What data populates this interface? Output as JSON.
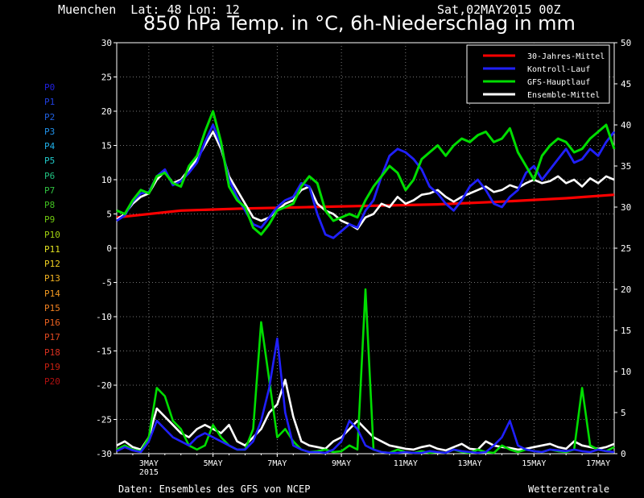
{
  "header": {
    "location": "Muenchen  Lat: 48 Lon: 12",
    "run": "Sat,02MAY2015 00Z",
    "title": "850 hPa Temp. in °C, 6h-Niederschlag in mm"
  },
  "footer": {
    "source": "Daten: Ensembles des GFS von NCEP",
    "brand": "Wetterzentrale"
  },
  "members": [
    {
      "label": "P0",
      "color": "#2020e0"
    },
    {
      "label": "P1",
      "color": "#2040e0"
    },
    {
      "label": "P2",
      "color": "#2060e0"
    },
    {
      "label": "P3",
      "color": "#2090e8"
    },
    {
      "label": "P4",
      "color": "#20b0e8"
    },
    {
      "label": "P5",
      "color": "#20c8c8"
    },
    {
      "label": "P6",
      "color": "#20c080"
    },
    {
      "label": "P7",
      "color": "#30c040"
    },
    {
      "label": "P8",
      "color": "#40c020"
    },
    {
      "label": "P9",
      "color": "#70c810"
    },
    {
      "label": "P10",
      "color": "#a0d010"
    },
    {
      "label": "P11",
      "color": "#e0e020"
    },
    {
      "label": "P12",
      "color": "#f0d020"
    },
    {
      "label": "P13",
      "color": "#f0b020"
    },
    {
      "label": "P14",
      "color": "#f09820"
    },
    {
      "label": "P15",
      "color": "#f08020"
    },
    {
      "label": "P16",
      "color": "#e86020"
    },
    {
      "label": "P17",
      "color": "#e04820"
    },
    {
      "label": "P18",
      "color": "#d83020"
    },
    {
      "label": "P19",
      "color": "#c82010"
    },
    {
      "label": "P20",
      "color": "#b01010"
    }
  ],
  "chart_data": {
    "type": "line",
    "x_ticks": [
      {
        "day": 1,
        "label": "3MAY",
        "sublabel": "2015"
      },
      {
        "day": 3,
        "label": "5MAY",
        "sublabel": ""
      },
      {
        "day": 5,
        "label": "7MAY",
        "sublabel": ""
      },
      {
        "day": 7,
        "label": "9MAY",
        "sublabel": ""
      },
      {
        "day": 9,
        "label": "11MAY",
        "sublabel": ""
      },
      {
        "day": 11,
        "label": "13MAY",
        "sublabel": ""
      },
      {
        "day": 13,
        "label": "15MAY",
        "sublabel": ""
      },
      {
        "day": 15,
        "label": "17MAY",
        "sublabel": ""
      }
    ],
    "x_unit": "days since 2 MAY 2015 00Z",
    "xlim": [
      0,
      15.5
    ],
    "y_left": {
      "ylim": [
        -30,
        30
      ],
      "ticks": [
        -30,
        -25,
        -20,
        -15,
        -10,
        -5,
        0,
        5,
        10,
        15,
        20,
        25,
        30
      ]
    },
    "y_right": {
      "ylim": [
        0,
        50
      ],
      "ticks": [
        0,
        5,
        10,
        15,
        20,
        25,
        30,
        35,
        40,
        45,
        50
      ]
    },
    "grid": true,
    "legend": {
      "placement": "top-right",
      "entries": [
        {
          "name": "30-Jahres-Mittel",
          "color": "#ff0000"
        },
        {
          "name": "Kontroll-Lauf",
          "color": "#2020ff"
        },
        {
          "name": "GFS-Hauptlauf",
          "color": "#00dd00"
        },
        {
          "name": "Ensemble-Mittel",
          "color": "#ffffff"
        }
      ]
    },
    "series": [
      {
        "name": "30-Jahres-Mittel",
        "axis": "temp",
        "color": "#ff0000",
        "width": 3.2,
        "x": [
          0,
          2,
          4,
          6,
          8,
          10,
          12,
          14,
          15.5
        ],
        "y": [
          4.5,
          5.5,
          5.8,
          6.0,
          6.2,
          6.4,
          6.8,
          7.3,
          7.8
        ]
      },
      {
        "name": "Ensemble-Mittel",
        "axis": "temp",
        "color": "#ffffff",
        "width": 2.6,
        "x": [
          0,
          0.25,
          0.5,
          0.75,
          1,
          1.25,
          1.5,
          1.75,
          2,
          2.25,
          2.5,
          2.75,
          3,
          3.25,
          3.5,
          3.75,
          4,
          4.25,
          4.5,
          4.75,
          5,
          5.25,
          5.5,
          5.75,
          6,
          6.25,
          6.5,
          6.75,
          7,
          7.25,
          7.5,
          7.75,
          8,
          8.25,
          8.5,
          8.75,
          9,
          9.25,
          9.5,
          9.75,
          10,
          10.25,
          10.5,
          10.75,
          11,
          11.25,
          11.5,
          11.75,
          12,
          12.25,
          12.5,
          12.75,
          13,
          13.25,
          13.5,
          13.75,
          14,
          14.25,
          14.5,
          14.75,
          15,
          15.25,
          15.5
        ],
        "y": [
          4.2,
          5.0,
          6.5,
          7.5,
          8.0,
          10.0,
          11.2,
          9.5,
          10.0,
          11.5,
          13.0,
          15.0,
          17.0,
          14.5,
          10.5,
          8.5,
          6.5,
          4.5,
          4.0,
          4.5,
          5.5,
          6.5,
          7.0,
          8.5,
          9.0,
          6.5,
          5.5,
          5.0,
          4.0,
          3.5,
          2.8,
          4.5,
          5.0,
          6.5,
          6.0,
          7.5,
          6.5,
          7.0,
          7.8,
          8.0,
          8.5,
          7.5,
          6.8,
          7.5,
          8.0,
          8.5,
          9.0,
          8.2,
          8.5,
          9.2,
          8.8,
          9.5,
          10.0,
          9.5,
          9.8,
          10.5,
          9.5,
          10.0,
          9.0,
          10.2,
          9.5,
          10.5,
          10.0
        ]
      },
      {
        "name": "Kontroll-Lauf",
        "axis": "temp",
        "color": "#2020ff",
        "width": 2.8,
        "x": [
          0,
          0.25,
          0.5,
          0.75,
          1,
          1.25,
          1.5,
          1.75,
          2,
          2.25,
          2.5,
          2.75,
          3,
          3.25,
          3.5,
          3.75,
          4,
          4.25,
          4.5,
          4.75,
          5,
          5.25,
          5.5,
          5.75,
          6,
          6.25,
          6.5,
          6.75,
          7,
          7.25,
          7.5,
          7.75,
          8,
          8.25,
          8.5,
          8.75,
          9,
          9.25,
          9.5,
          9.75,
          10,
          10.25,
          10.5,
          10.75,
          11,
          11.25,
          11.5,
          11.75,
          12,
          12.25,
          12.5,
          12.75,
          13,
          13.25,
          13.5,
          13.75,
          14,
          14.25,
          14.5,
          14.75,
          15,
          15.25,
          15.5
        ],
        "y": [
          4.0,
          4.8,
          6.8,
          8.0,
          8.2,
          10.5,
          11.5,
          9.2,
          9.8,
          11.0,
          12.5,
          15.5,
          18.0,
          15.0,
          10.0,
          7.5,
          5.5,
          3.5,
          3.0,
          4.5,
          6.0,
          7.0,
          7.5,
          9.5,
          9.0,
          5.0,
          2.0,
          1.5,
          2.5,
          3.5,
          3.0,
          5.5,
          7.0,
          10.5,
          13.5,
          14.5,
          14.0,
          13.0,
          11.5,
          9.0,
          8.0,
          6.5,
          5.5,
          7.0,
          9.0,
          10.0,
          8.5,
          6.5,
          6.0,
          7.5,
          8.5,
          11.0,
          12.0,
          10.0,
          11.5,
          13.0,
          14.5,
          12.5,
          13.0,
          14.5,
          13.5,
          15.5,
          17.0
        ]
      },
      {
        "name": "GFS-Hauptlauf",
        "axis": "temp",
        "color": "#00dd00",
        "width": 3.0,
        "x": [
          0,
          0.25,
          0.5,
          0.75,
          1,
          1.25,
          1.5,
          1.75,
          2,
          2.25,
          2.5,
          2.75,
          3,
          3.25,
          3.5,
          3.75,
          4,
          4.25,
          4.5,
          4.75,
          5,
          5.25,
          5.5,
          5.75,
          6,
          6.25,
          6.5,
          6.75,
          7,
          7.25,
          7.5,
          7.75,
          8,
          8.25,
          8.5,
          8.75,
          9,
          9.25,
          9.5,
          9.75,
          10,
          10.25,
          10.5,
          10.75,
          11,
          11.25,
          11.5,
          11.75,
          12,
          12.25,
          12.5,
          12.75,
          13,
          13.25,
          13.5,
          13.75,
          14,
          14.25,
          14.5,
          14.75,
          15,
          15.25,
          15.5
        ],
        "y": [
          5.5,
          5.0,
          7.0,
          8.5,
          8.0,
          10.5,
          11.0,
          9.5,
          9.0,
          12.0,
          13.5,
          17.0,
          20.0,
          15.5,
          9.0,
          7.0,
          6.0,
          3.0,
          2.0,
          3.5,
          5.5,
          6.0,
          6.5,
          9.0,
          10.5,
          9.5,
          5.5,
          4.0,
          4.5,
          5.0,
          4.5,
          7.0,
          9.0,
          10.5,
          12.0,
          11.0,
          8.5,
          10.0,
          13.0,
          14.0,
          15.0,
          13.5,
          15.0,
          16.0,
          15.5,
          16.5,
          17.0,
          15.5,
          16.0,
          17.5,
          14.0,
          12.0,
          10.0,
          13.5,
          15.0,
          16.0,
          15.5,
          14.0,
          14.5,
          16.0,
          17.0,
          18.0,
          14.5
        ]
      },
      {
        "name": "Ensemble-Mittel-Niederschlag",
        "axis": "precip",
        "color": "#ffffff",
        "width": 2.6,
        "x": [
          0,
          0.25,
          0.5,
          0.75,
          1,
          1.25,
          1.5,
          1.75,
          2,
          2.25,
          2.5,
          2.75,
          3,
          3.25,
          3.5,
          3.75,
          4,
          4.25,
          4.5,
          4.75,
          5,
          5.25,
          5.5,
          5.75,
          6,
          6.25,
          6.5,
          6.75,
          7,
          7.25,
          7.5,
          7.75,
          8,
          8.25,
          8.5,
          8.75,
          9,
          9.25,
          9.5,
          9.75,
          10,
          10.25,
          10.5,
          10.75,
          11,
          11.25,
          11.5,
          11.75,
          12,
          12.25,
          12.5,
          12.75,
          13,
          13.25,
          13.5,
          13.75,
          14,
          14.25,
          14.5,
          14.75,
          15,
          15.25,
          15.5
        ],
        "y": [
          1.0,
          1.5,
          0.8,
          0.5,
          2.0,
          5.5,
          4.5,
          3.5,
          2.5,
          2.0,
          3.0,
          3.5,
          3.0,
          2.5,
          3.5,
          1.5,
          1.0,
          2.0,
          3.0,
          5.0,
          6.0,
          9.0,
          4.5,
          1.5,
          1.0,
          0.8,
          0.6,
          1.5,
          2.0,
          3.0,
          4.0,
          3.0,
          2.0,
          1.5,
          1.0,
          0.8,
          0.6,
          0.5,
          0.8,
          1.0,
          0.6,
          0.4,
          0.8,
          1.2,
          0.6,
          0.5,
          1.5,
          1.0,
          0.8,
          0.7,
          0.5,
          0.6,
          0.8,
          1.0,
          1.2,
          0.8,
          0.6,
          1.5,
          1.0,
          0.8,
          0.6,
          0.8,
          1.2
        ]
      },
      {
        "name": "GFS-Hauptlauf-Niederschlag",
        "axis": "precip",
        "color": "#00dd00",
        "width": 2.6,
        "x": [
          0,
          0.25,
          0.5,
          0.75,
          1,
          1.25,
          1.5,
          1.75,
          2,
          2.25,
          2.5,
          2.75,
          3,
          3.25,
          3.5,
          3.75,
          4,
          4.25,
          4.5,
          4.75,
          5,
          5.25,
          5.5,
          5.75,
          6,
          6.25,
          6.5,
          6.75,
          7,
          7.25,
          7.5,
          7.75,
          8,
          8.25,
          8.5,
          8.75,
          9,
          9.25,
          9.5,
          9.75,
          10,
          10.25,
          10.5,
          10.75,
          11,
          11.25,
          11.5,
          11.75,
          12,
          12.25,
          12.5,
          12.75,
          13,
          13.25,
          13.5,
          13.75,
          14,
          14.25,
          14.5,
          14.75,
          15,
          15.25,
          15.5
        ],
        "y": [
          0.5,
          1.0,
          0.5,
          0.3,
          2.0,
          8.0,
          7.0,
          4.0,
          3.0,
          1.0,
          0.5,
          1.0,
          3.5,
          2.0,
          1.0,
          0.5,
          0.5,
          3.0,
          16.0,
          9.0,
          2.0,
          3.0,
          1.5,
          0.5,
          0.2,
          0.3,
          0.5,
          0.2,
          0.3,
          1.0,
          0.5,
          20.0,
          0.5,
          0.2,
          0.1,
          0.5,
          0.2,
          0.1,
          0.3,
          0.1,
          0.2,
          0.1,
          0.5,
          0.2,
          0.1,
          0.5,
          0.2,
          0.1,
          1.0,
          0.5,
          0.2,
          0.5,
          0.3,
          0.2,
          0.5,
          0.3,
          0.2,
          0.5,
          8.0,
          1.0,
          0.5,
          0.3,
          0.8
        ]
      },
      {
        "name": "Kontroll-Lauf-Niederschlag",
        "axis": "precip",
        "color": "#2020ff",
        "width": 2.6,
        "x": [
          0,
          0.25,
          0.5,
          0.75,
          1,
          1.25,
          1.5,
          1.75,
          2,
          2.25,
          2.5,
          2.75,
          3,
          3.25,
          3.5,
          3.75,
          4,
          4.25,
          4.5,
          4.75,
          5,
          5.25,
          5.5,
          5.75,
          6,
          6.25,
          6.5,
          6.75,
          7,
          7.25,
          7.5,
          7.75,
          8,
          8.25,
          8.5,
          8.75,
          9,
          9.25,
          9.5,
          9.75,
          10,
          10.25,
          10.5,
          10.75,
          11,
          11.25,
          11.5,
          11.75,
          12,
          12.25,
          12.5,
          12.75,
          13,
          13.25,
          13.5,
          13.75,
          14,
          14.25,
          14.5,
          14.75,
          15,
          15.25,
          15.5
        ],
        "y": [
          0.3,
          0.8,
          0.4,
          0.2,
          1.5,
          4.0,
          3.0,
          2.0,
          1.5,
          1.0,
          2.0,
          2.5,
          2.0,
          1.5,
          1.0,
          0.5,
          0.5,
          1.5,
          4.0,
          8.0,
          14.0,
          5.0,
          1.0,
          0.5,
          0.2,
          0.2,
          0.1,
          0.5,
          1.5,
          4.0,
          3.0,
          1.0,
          0.5,
          0.2,
          0.1,
          0.1,
          0.2,
          0.1,
          0.1,
          0.3,
          0.2,
          0.1,
          0.5,
          0.3,
          0.2,
          0.1,
          0.2,
          1.0,
          2.0,
          4.0,
          1.0,
          0.5,
          0.3,
          0.2,
          0.5,
          0.4,
          0.3,
          0.5,
          0.3,
          0.2,
          0.5,
          0.3,
          0.2
        ]
      }
    ]
  }
}
